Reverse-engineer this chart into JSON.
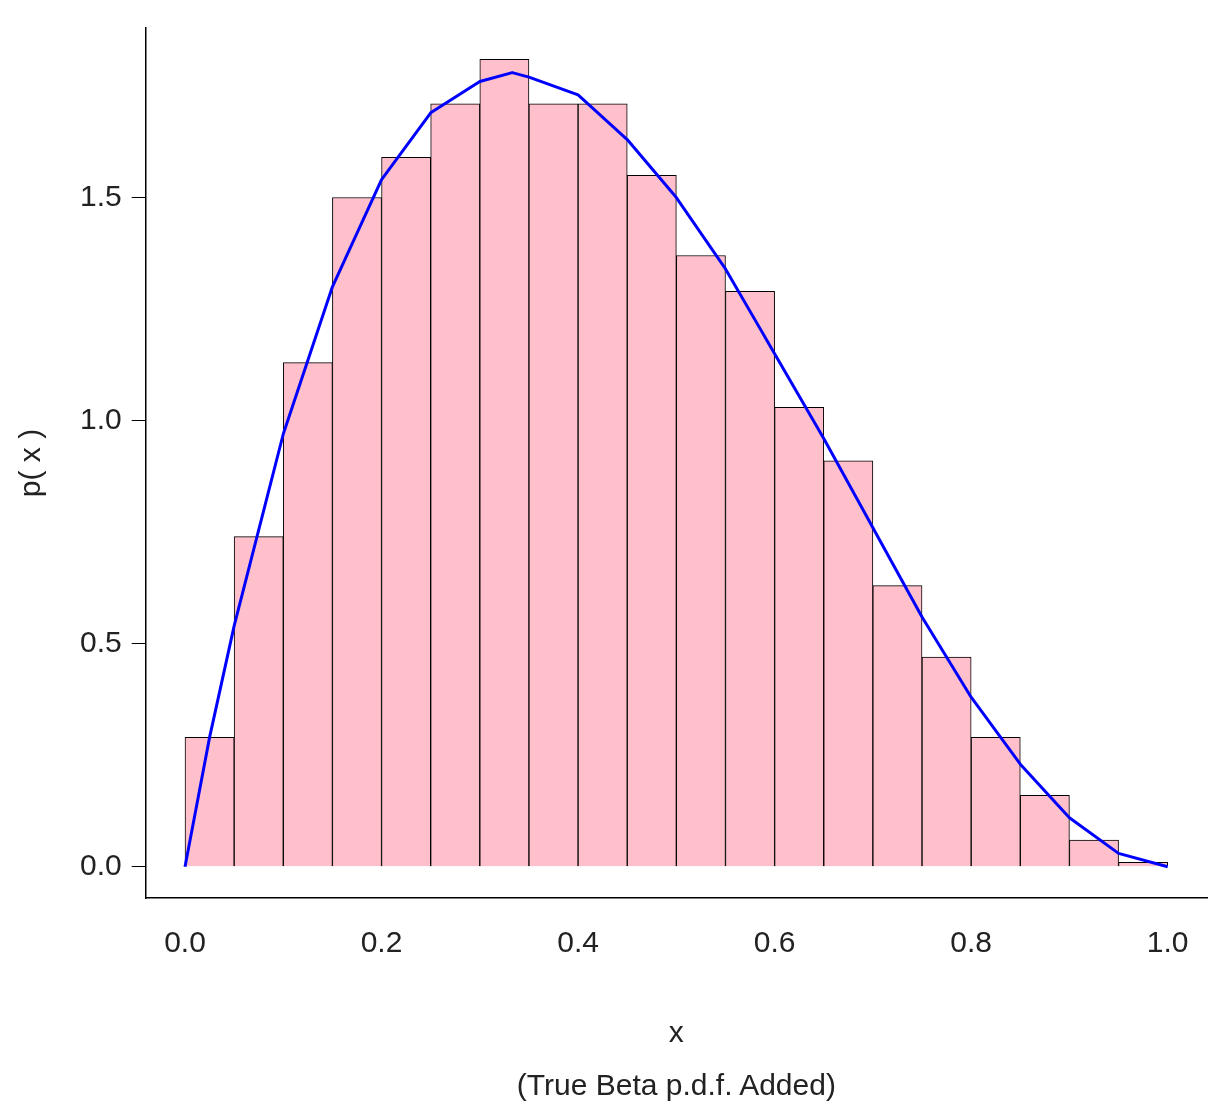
{
  "chart_data": {
    "type": "histogram",
    "xlabel": "x",
    "ylabel": "p( x )",
    "annotations": [
      "(True Beta p.d.f. Added)"
    ],
    "bins": [
      0,
      0.05,
      0.1,
      0.15,
      0.2,
      0.25,
      0.3,
      0.35,
      0.4,
      0.45,
      0.5,
      0.55,
      0.6,
      0.65,
      0.7,
      0.75,
      0.8,
      0.85,
      0.9,
      0.95,
      1.0
    ],
    "values": [
      0.29,
      0.74,
      1.13,
      1.5,
      1.59,
      1.71,
      1.81,
      1.71,
      1.71,
      1.55,
      1.37,
      1.29,
      1.03,
      0.91,
      0.63,
      0.47,
      0.29,
      0.16,
      0.06,
      0.01
    ],
    "color": "#ffc0cb",
    "series": [
      {
        "type": "line",
        "color": "#0000ff",
        "x": [
          0,
          0.025,
          0.05,
          0.1,
          0.15,
          0.2,
          0.25,
          0.3,
          0.333,
          0.35,
          0.4,
          0.45,
          0.5,
          0.55,
          0.6,
          0.65,
          0.7,
          0.75,
          0.8,
          0.85,
          0.9,
          0.95,
          1.0
        ],
        "values": [
          0,
          0.29,
          0.54,
          0.97,
          1.3,
          1.54,
          1.69,
          1.76,
          1.78,
          1.77,
          1.73,
          1.63,
          1.5,
          1.34,
          1.15,
          0.96,
          0.76,
          0.56,
          0.38,
          0.23,
          0.11,
          0.03,
          0
        ]
      }
    ],
    "xlim": [
      -0.04,
      1.04
    ],
    "ylim": [
      -0.07,
      1.88
    ],
    "xticks": [
      {
        "value": 0,
        "label": "0.0"
      },
      0.2,
      0.4,
      0.6,
      0.8,
      {
        "value": 1,
        "label": "1.0"
      }
    ],
    "yticks": [
      {
        "value": 0,
        "label": "0.0"
      },
      0.5,
      {
        "value": 1,
        "label": "1.0"
      },
      1.5
    ],
    "grid": false,
    "legend": false
  }
}
